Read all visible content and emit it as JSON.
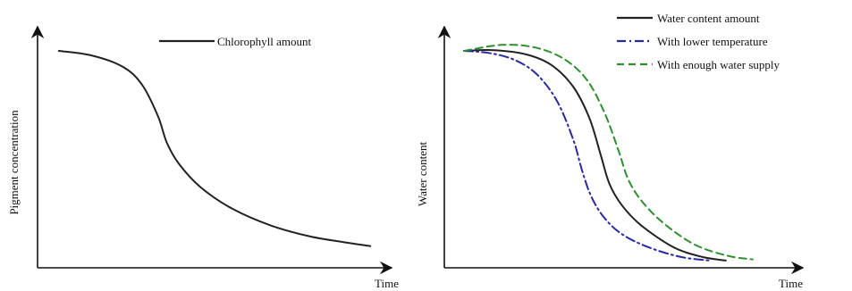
{
  "chart_data": [
    {
      "type": "line",
      "xlabel": "Time",
      "ylabel": "Pigment concentration",
      "xlim": [
        0,
        10
      ],
      "ylim": [
        0,
        10
      ],
      "grid": false,
      "legend": "top-right",
      "series": [
        {
          "name": "Chlorophyll amount",
          "style": "solid",
          "color": "#222222",
          "points": [
            [
              0.6,
              9.0
            ],
            [
              1.5,
              8.82
            ],
            [
              2.4,
              8.35
            ],
            [
              2.95,
              7.6
            ],
            [
              3.4,
              6.3
            ],
            [
              3.65,
              5.2
            ],
            [
              4.0,
              4.3
            ],
            [
              4.6,
              3.35
            ],
            [
              5.5,
              2.45
            ],
            [
              6.6,
              1.75
            ],
            [
              7.7,
              1.3
            ],
            [
              8.7,
              1.05
            ],
            [
              9.4,
              0.9
            ]
          ]
        }
      ]
    },
    {
      "type": "line",
      "xlabel": "Time",
      "ylabel": "Water content",
      "xlim": [
        0,
        10
      ],
      "ylim": [
        0,
        10
      ],
      "grid": false,
      "legend": "top-right",
      "series": [
        {
          "name": "Water content amount",
          "style": "solid",
          "color": "#222222",
          "points": [
            [
              0.55,
              9.0
            ],
            [
              1.4,
              9.03
            ],
            [
              2.3,
              8.85
            ],
            [
              3.0,
              8.4
            ],
            [
              3.6,
              7.5
            ],
            [
              4.05,
              6.2
            ],
            [
              4.35,
              4.75
            ],
            [
              4.6,
              3.5
            ],
            [
              4.95,
              2.6
            ],
            [
              5.5,
              1.75
            ],
            [
              6.4,
              0.85
            ],
            [
              7.2,
              0.45
            ],
            [
              7.85,
              0.3
            ]
          ]
        },
        {
          "name": "With lower temperature",
          "style": "dashdot",
          "color": "#2a2aa0",
          "points": [
            [
              0.55,
              9.0
            ],
            [
              1.3,
              8.9
            ],
            [
              2.0,
              8.6
            ],
            [
              2.6,
              8.0
            ],
            [
              3.15,
              6.9
            ],
            [
              3.6,
              5.3
            ],
            [
              3.85,
              4.0
            ],
            [
              4.1,
              2.95
            ],
            [
              4.45,
              2.1
            ],
            [
              4.95,
              1.4
            ],
            [
              5.7,
              0.85
            ],
            [
              6.6,
              0.45
            ],
            [
              7.4,
              0.3
            ]
          ]
        },
        {
          "name": "With enough water supply",
          "style": "dashed",
          "color": "#2f8f2f",
          "points": [
            [
              0.55,
              9.0
            ],
            [
              1.6,
              9.25
            ],
            [
              2.5,
              9.15
            ],
            [
              3.3,
              8.7
            ],
            [
              3.95,
              7.85
            ],
            [
              4.45,
              6.5
            ],
            [
              4.85,
              4.9
            ],
            [
              5.15,
              3.6
            ],
            [
              5.6,
              2.6
            ],
            [
              6.2,
              1.75
            ],
            [
              7.0,
              0.95
            ],
            [
              7.9,
              0.5
            ],
            [
              8.6,
              0.35
            ]
          ]
        }
      ]
    }
  ]
}
